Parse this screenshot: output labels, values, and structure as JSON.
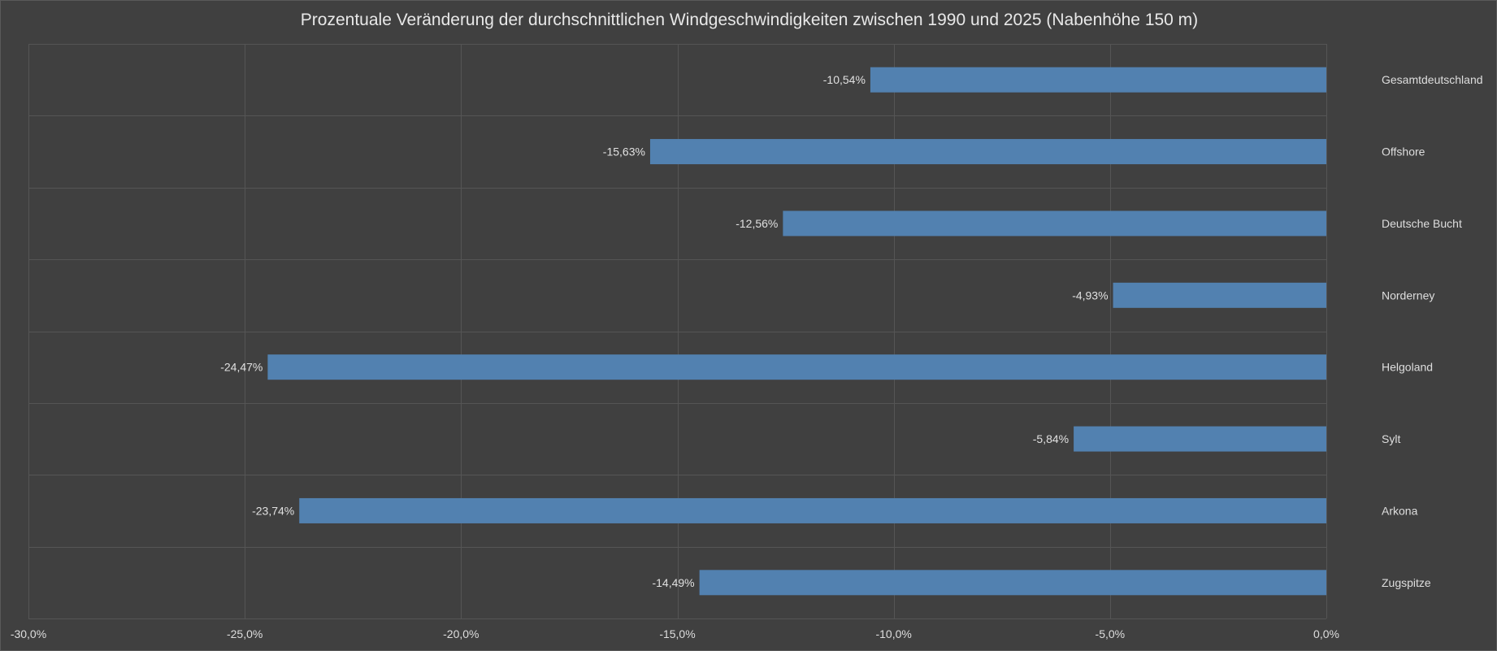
{
  "chart_data": {
    "type": "bar",
    "orientation": "horizontal",
    "title": "Prozentuale Veränderung der durchschnittlichen Windgeschwindigkeiten zwischen 1990 und 2025 (Nabenhöhe 150 m)",
    "categories": [
      "Gesamtdeutschland",
      "Offshore",
      "Deutsche Bucht",
      "Norderney",
      "Helgoland",
      "Sylt",
      "Arkona",
      "Zugspitze"
    ],
    "values": [
      -10.54,
      -15.63,
      -12.56,
      -4.93,
      -24.47,
      -5.84,
      -23.74,
      -14.49
    ],
    "value_labels": [
      "-10,54%",
      "-15,63%",
      "-12,56%",
      "-4,93%",
      "-24,47%",
      "-5,84%",
      "-23,74%",
      "-14,49%"
    ],
    "xlim": [
      -30,
      0
    ],
    "x_ticks": [
      -30,
      -25,
      -20,
      -15,
      -10,
      -5,
      0
    ],
    "x_tick_labels": [
      "-30,0%",
      "-25,0%",
      "-20,0%",
      "-15,0%",
      "-10,0%",
      "-5,0%",
      "0,0%"
    ],
    "xlabel": "",
    "ylabel": "",
    "grid": true,
    "legend": "none",
    "bar_color": "#5281b0",
    "background_color": "#404040",
    "grid_color": "#555555"
  }
}
